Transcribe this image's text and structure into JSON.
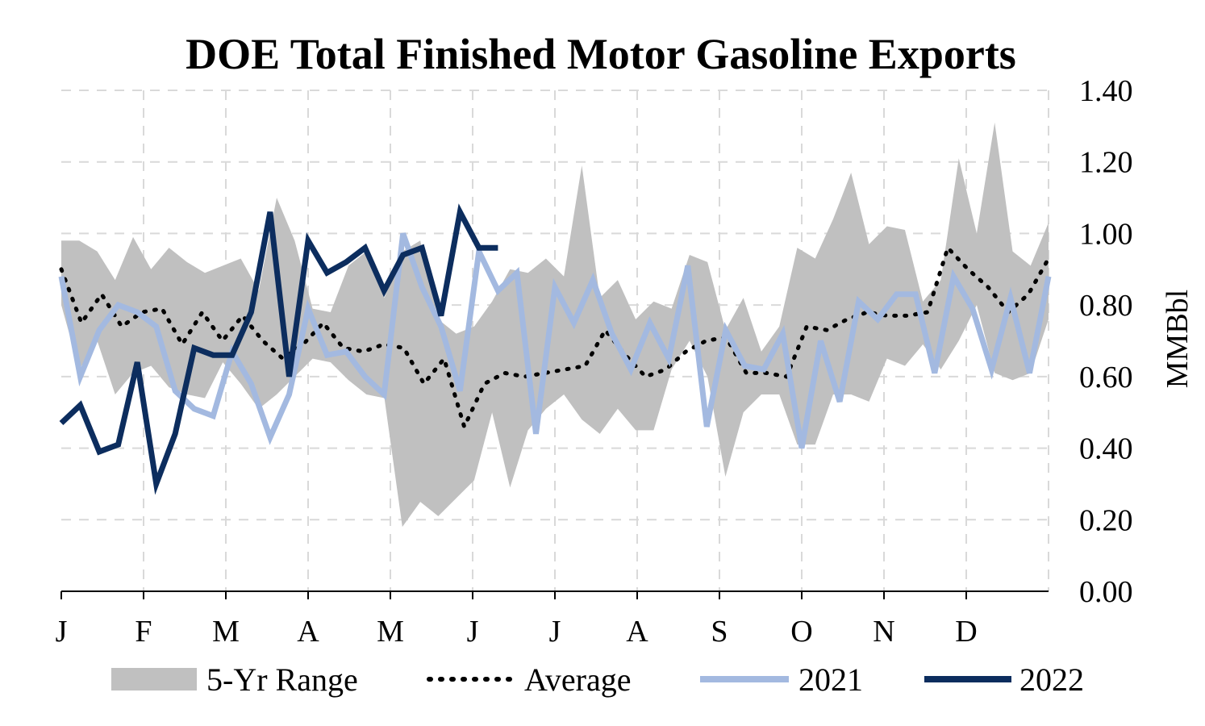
{
  "chart_data": {
    "type": "line",
    "title": "DOE Total Finished Motor Gasoline Exports",
    "ylabel": "MMBbl",
    "ylim": [
      0,
      1.4
    ],
    "yticks": [
      "0.00",
      "0.20",
      "0.40",
      "0.60",
      "0.80",
      "1.00",
      "1.20",
      "1.40"
    ],
    "xticks": [
      "J",
      "F",
      "M",
      "A",
      "M",
      "J",
      "J",
      "A",
      "S",
      "O",
      "N",
      "D"
    ],
    "weeks_per_year": 52,
    "grid": true,
    "legend_position": "bottom",
    "legend": [
      "5-Yr Range",
      "Average",
      "2021",
      "2022"
    ],
    "colors": {
      "range": "#c0c0c0",
      "average": "#000000",
      "y2021": "#a3b9e0",
      "y2022": "#0c2d5e",
      "grid": "#d9d9d9"
    },
    "range_high": [
      0.98,
      0.98,
      0.95,
      0.87,
      0.99,
      0.9,
      0.96,
      0.92,
      0.89,
      0.91,
      0.93,
      0.84,
      1.1,
      0.98,
      0.79,
      0.78,
      0.91,
      0.95,
      0.82,
      0.95,
      0.98,
      0.76,
      0.72,
      0.74,
      0.81,
      0.9,
      0.89,
      0.93,
      0.88,
      1.19,
      0.82,
      0.87,
      0.76,
      0.81,
      0.79,
      0.94,
      0.92,
      0.73,
      0.82,
      0.67,
      0.74,
      0.96,
      0.93,
      1.04,
      1.17,
      0.97,
      1.02,
      1.01,
      0.81,
      0.87,
      1.21,
      1.0,
      1.31,
      0.95,
      0.91,
      1.03
    ],
    "range_low": [
      0.8,
      0.62,
      0.7,
      0.55,
      0.61,
      0.63,
      0.57,
      0.55,
      0.54,
      0.64,
      0.58,
      0.51,
      0.55,
      0.6,
      0.65,
      0.64,
      0.59,
      0.55,
      0.54,
      0.18,
      0.25,
      0.21,
      0.26,
      0.31,
      0.5,
      0.29,
      0.45,
      0.51,
      0.55,
      0.48,
      0.44,
      0.51,
      0.45,
      0.45,
      0.62,
      0.7,
      0.6,
      0.32,
      0.5,
      0.55,
      0.55,
      0.41,
      0.41,
      0.55,
      0.55,
      0.53,
      0.65,
      0.63,
      0.69,
      0.62,
      0.7,
      0.8,
      0.61,
      0.59,
      0.61,
      0.76
    ],
    "average": [
      0.9,
      0.75,
      0.83,
      0.74,
      0.78,
      0.79,
      0.69,
      0.78,
      0.7,
      0.77,
      0.7,
      0.65,
      0.69,
      0.75,
      0.68,
      0.67,
      0.69,
      0.68,
      0.58,
      0.65,
      0.46,
      0.58,
      0.61,
      0.6,
      0.61,
      0.62,
      0.63,
      0.73,
      0.66,
      0.6,
      0.62,
      0.67,
      0.7,
      0.71,
      0.61,
      0.61,
      0.6,
      0.74,
      0.73,
      0.76,
      0.78,
      0.77,
      0.77,
      0.78,
      0.96,
      0.9,
      0.85,
      0.78,
      0.83,
      0.93
    ],
    "y2021": [
      0.88,
      0.6,
      0.73,
      0.8,
      0.78,
      0.74,
      0.56,
      0.51,
      0.49,
      0.67,
      0.58,
      0.43,
      0.55,
      0.79,
      0.66,
      0.67,
      0.6,
      0.55,
      1.0,
      0.85,
      0.74,
      0.56,
      0.95,
      0.84,
      0.89,
      0.44,
      0.85,
      0.75,
      0.87,
      0.72,
      0.62,
      0.75,
      0.65,
      0.91,
      0.46,
      0.73,
      0.63,
      0.62,
      0.72,
      0.4,
      0.7,
      0.53,
      0.81,
      0.76,
      0.83,
      0.83,
      0.61,
      0.88,
      0.79,
      0.62,
      0.82,
      0.61,
      0.88
    ],
    "y2022": [
      0.47,
      0.52,
      0.39,
      0.41,
      0.64,
      0.3,
      0.44,
      0.68,
      0.66,
      0.66,
      0.78,
      1.06,
      0.6,
      0.98,
      0.89,
      0.92,
      0.96,
      0.84,
      0.94,
      0.96,
      0.77,
      1.06,
      0.96,
      0.96
    ]
  }
}
